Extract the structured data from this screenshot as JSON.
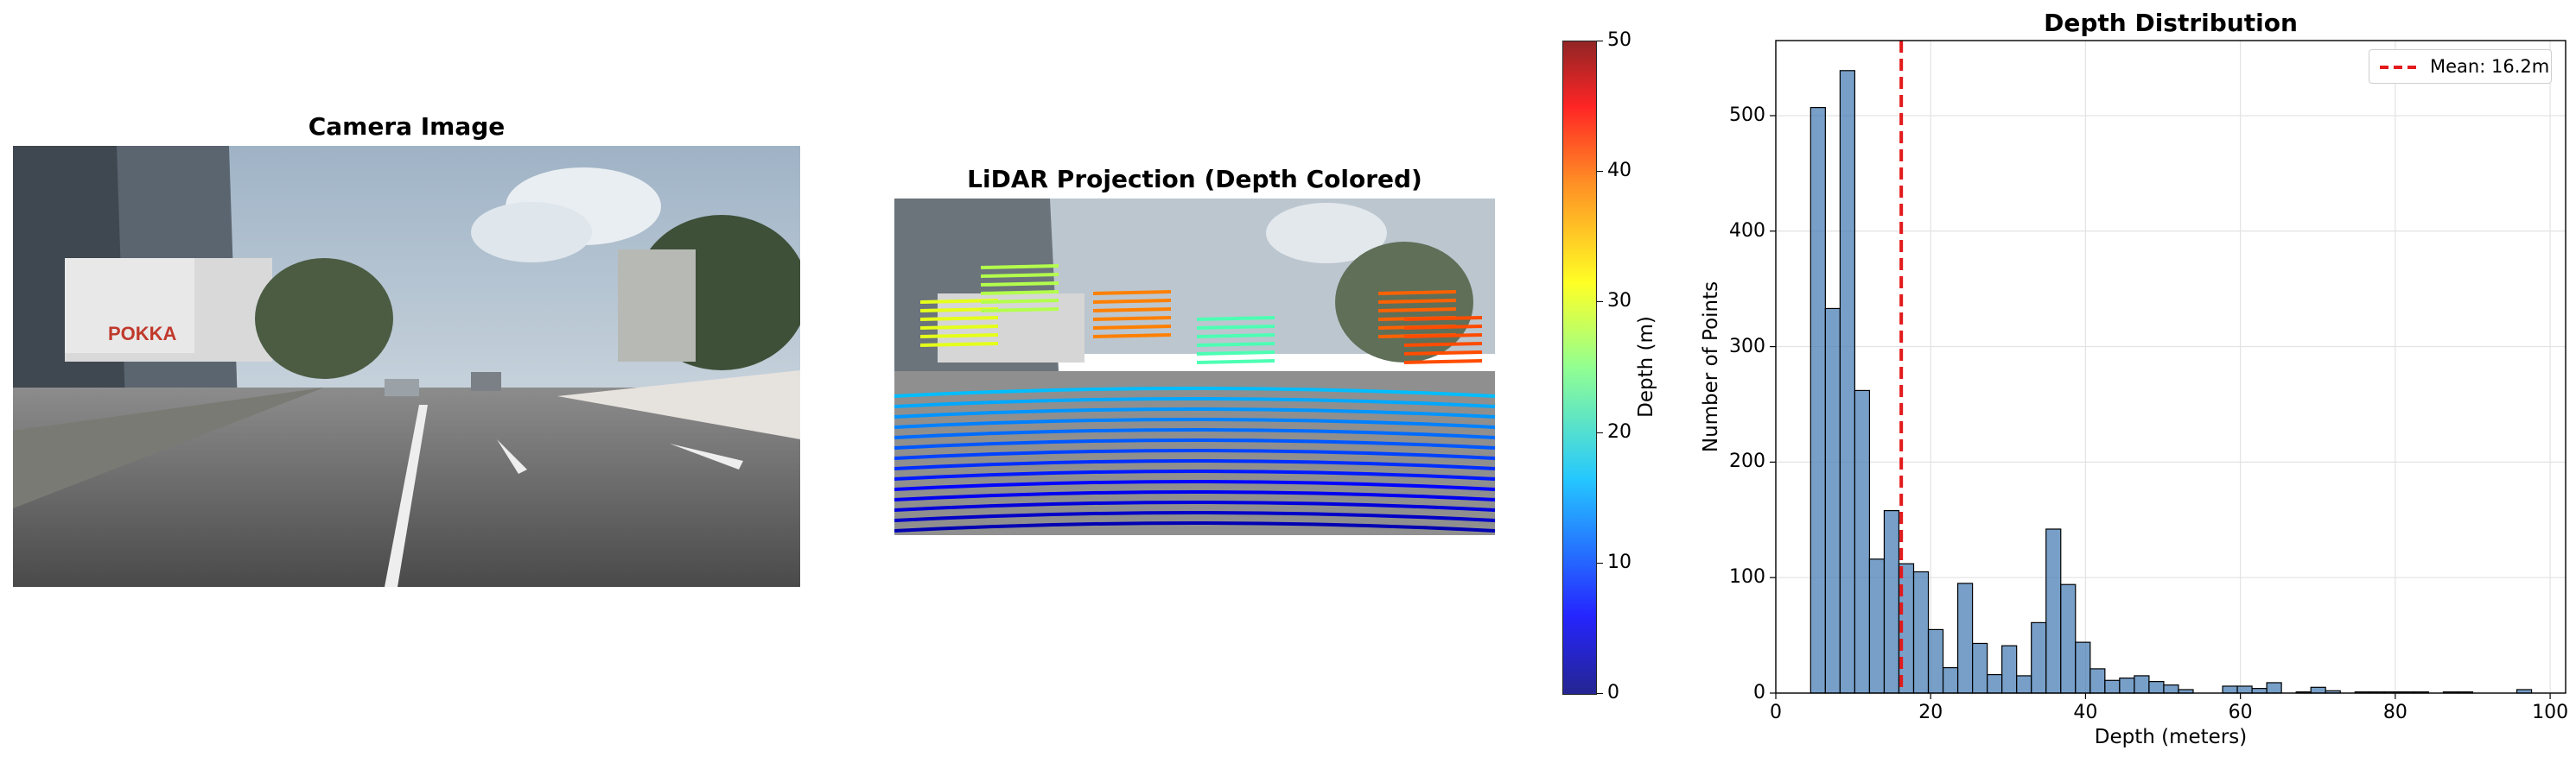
{
  "panels": {
    "camera": {
      "title": "Camera Image"
    },
    "lidar": {
      "title": "LiDAR Projection (Depth Colored)"
    }
  },
  "colorbar": {
    "label": "Depth (m)",
    "range": [
      0,
      50
    ],
    "ticks": [
      "0",
      "10",
      "20",
      "30",
      "40",
      "50"
    ],
    "colormap": "jet"
  },
  "chart_data": {
    "type": "bar",
    "title": "Depth Distribution",
    "xlabel": "Depth (meters)",
    "ylabel": "Number of Points",
    "xlim": [
      0,
      102
    ],
    "ylim": [
      0,
      565
    ],
    "xticks": [
      "0",
      "20",
      "40",
      "60",
      "80",
      "100"
    ],
    "yticks": [
      "0",
      "100",
      "200",
      "300",
      "400",
      "500"
    ],
    "grid": true,
    "bar_color": "#4a7fb5",
    "bin_edges": [
      4.5,
      6.4,
      8.3,
      10.2,
      12.1,
      14.0,
      15.9,
      17.8,
      19.7,
      21.6,
      23.5,
      25.4,
      27.3,
      29.2,
      31.1,
      33.0,
      34.9,
      36.8,
      38.7,
      40.6,
      42.5,
      44.4,
      46.3,
      48.2,
      50.1,
      52.0,
      53.9,
      55.8,
      57.7,
      59.6,
      61.5,
      63.4,
      65.3,
      67.2,
      69.1,
      71.0,
      72.9,
      74.8,
      76.7,
      78.6,
      80.5,
      82.4,
      84.3,
      86.2,
      88.1,
      90.0,
      91.9,
      93.8,
      95.7,
      97.6
    ],
    "counts": [
      507,
      333,
      539,
      262,
      116,
      158,
      112,
      105,
      55,
      22,
      95,
      43,
      16,
      41,
      15,
      61,
      142,
      94,
      44,
      21,
      11,
      13,
      15,
      10,
      7,
      3,
      0,
      0,
      6,
      6,
      4,
      9,
      0,
      1,
      5,
      2,
      0,
      1,
      1,
      1,
      1,
      1,
      0,
      1,
      1,
      0,
      0,
      0,
      3
    ],
    "mean_line": {
      "value": 16.2,
      "color": "#e31a1c",
      "label": "Mean: 16.2m"
    },
    "legend_position": "upper-right"
  }
}
